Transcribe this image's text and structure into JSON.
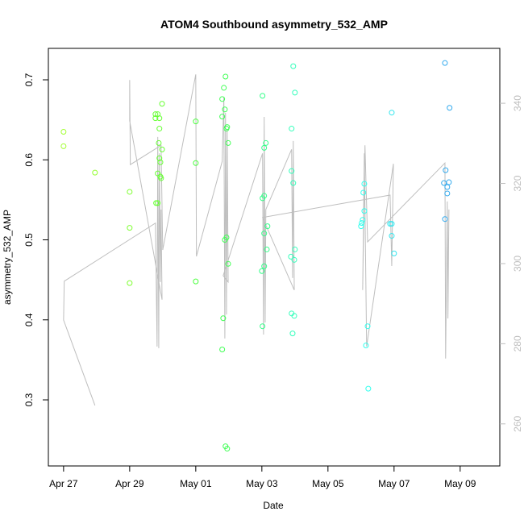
{
  "chart_data": {
    "type": "scatter",
    "title": "ATOM4 Southbound asymmetry_532_AMP",
    "x_label": "Date",
    "y_label": "asymmetry_532_AMP",
    "xlim": [
      116.54,
      130.2
    ],
    "ylim": [
      0.2174,
      0.7393
    ],
    "y2lim": [
      249.5,
      353.7
    ],
    "xticks": [
      {
        "value": 117,
        "label": "Apr 27"
      },
      {
        "value": 119,
        "label": "Apr 29"
      },
      {
        "value": 121,
        "label": "May 01"
      },
      {
        "value": 123,
        "label": "May 03"
      },
      {
        "value": 125,
        "label": "May 05"
      },
      {
        "value": 127,
        "label": "May 07"
      },
      {
        "value": 129,
        "label": "May 09"
      }
    ],
    "yticks": [
      0.3,
      0.4,
      0.5,
      0.6,
      0.7
    ],
    "y2ticks": [
      260,
      280,
      300,
      320,
      340
    ],
    "series": [
      {
        "type": "scatter",
        "color": "#a3ff33",
        "x": [
          117.0,
          117.0
        ],
        "values": [
          0.635,
          0.617
        ]
      },
      {
        "type": "scatter",
        "color": "#96ff33",
        "x": [
          117.95
        ],
        "values": [
          0.584
        ]
      },
      {
        "type": "scatter",
        "color": "#80ff33",
        "x": [
          119.0,
          119.0,
          119.0
        ],
        "values": [
          0.56,
          0.515,
          0.446
        ]
      },
      {
        "type": "scatter",
        "color": "#66ff33",
        "x": [
          119.78,
          119.85,
          119.78,
          119.9,
          119.98,
          119.9,
          119.88,
          119.98,
          119.9,
          119.93,
          119.85,
          119.93,
          119.95,
          119.8,
          119.85
        ],
        "values": [
          0.657,
          0.657,
          0.652,
          0.652,
          0.67,
          0.639,
          0.621,
          0.613,
          0.602,
          0.597,
          0.583,
          0.579,
          0.577,
          0.546,
          0.546
        ]
      },
      {
        "type": "scatter",
        "color": "#4dff40",
        "x": [
          121.0,
          121.0,
          121.0
        ],
        "values": [
          0.648,
          0.596,
          0.448
        ]
      },
      {
        "type": "scatter",
        "color": "#40ff55",
        "x": [
          121.9,
          121.85,
          121.8,
          121.88,
          121.8,
          121.95,
          121.93,
          121.98,
          121.93,
          121.88,
          121.98,
          121.83,
          121.8,
          121.9,
          121.95
        ],
        "values": [
          0.704,
          0.69,
          0.676,
          0.663,
          0.654,
          0.641,
          0.639,
          0.621,
          0.503,
          0.5,
          0.47,
          0.402,
          0.363,
          0.242,
          0.239
        ]
      },
      {
        "type": "scatter",
        "color": "#33ff88",
        "x": [
          123.02,
          123.12,
          123.07,
          123.07,
          123.02,
          123.17,
          123.07,
          123.15,
          123.07,
          123.0,
          123.02
        ],
        "values": [
          0.68,
          0.621,
          0.615,
          0.555,
          0.552,
          0.517,
          0.508,
          0.488,
          0.467,
          0.461,
          0.392
        ]
      },
      {
        "type": "scatter",
        "color": "#33ffbb",
        "x": [
          123.95,
          124.0,
          123.9,
          123.9,
          123.95,
          124.0,
          123.88,
          123.98,
          123.9,
          123.98,
          123.93
        ],
        "values": [
          0.717,
          0.684,
          0.639,
          0.586,
          0.571,
          0.488,
          0.479,
          0.475,
          0.408,
          0.405,
          0.383
        ]
      },
      {
        "type": "scatter",
        "color": "#33ffee",
        "x": [
          126.1,
          126.07,
          126.1,
          126.05,
          126.02,
          126.0,
          126.2,
          126.15,
          126.22
        ],
        "values": [
          0.57,
          0.559,
          0.536,
          0.525,
          0.521,
          0.517,
          0.392,
          0.368,
          0.314
        ]
      },
      {
        "type": "scatter",
        "color": "#33e6ee",
        "x": [
          126.93,
          126.88,
          126.93,
          126.93,
          127.0
        ],
        "values": [
          0.659,
          0.52,
          0.52,
          0.505,
          0.483
        ]
      },
      {
        "type": "scatter",
        "color": "#33aaee",
        "x": [
          128.54,
          128.68,
          128.56,
          128.51,
          128.66,
          128.61,
          128.61,
          128.54
        ],
        "values": [
          0.721,
          0.665,
          0.587,
          0.571,
          0.572,
          0.566,
          0.558,
          0.526
        ]
      },
      {
        "type": "line",
        "color": "#bebebe",
        "axis": "y2",
        "x": [
          117.95,
          117.0,
          117.02,
          119.78,
          119.83,
          119.85,
          119.88,
          119.9,
          119.93,
          119.95,
          119.98,
          119.0,
          119.0,
          119.02,
          119.95,
          120.0,
          121.0,
          121.02,
          121.8,
          121.85,
          121.88,
          121.9,
          121.93,
          121.95,
          121.98,
          121.83,
          123.02,
          123.05,
          123.07,
          123.1,
          123.12,
          123.9,
          123.93,
          123.95,
          123.98,
          123.02,
          126.88,
          126.93,
          126.98,
          126.17,
          126.1,
          126.05,
          126.12,
          126.2,
          128.54,
          128.56,
          128.61,
          128.63,
          128.66
        ],
        "values": [
          264.6,
          285.9,
          295.6,
          310.1,
          279.3,
          331.6,
          278.9,
          327.5,
          295.4,
          313.5,
          291.0,
          335.6,
          345.8,
          324.7,
          329.5,
          303.4,
          347.2,
          301.8,
          325.5,
          341.6,
          281.3,
          337.6,
          287.3,
          333.6,
          295.4,
          297.0,
          327.5,
          282.3,
          336.6,
          285.3,
          313.5,
          328.5,
          296.4,
          330.6,
          293.4,
          311.5,
          317.1,
          299.4,
          324.9,
          279.3,
          327.5,
          293.4,
          329.5,
          305.4,
          325.1,
          276.3,
          315.5,
          286.3,
          313.5
        ]
      }
    ]
  }
}
